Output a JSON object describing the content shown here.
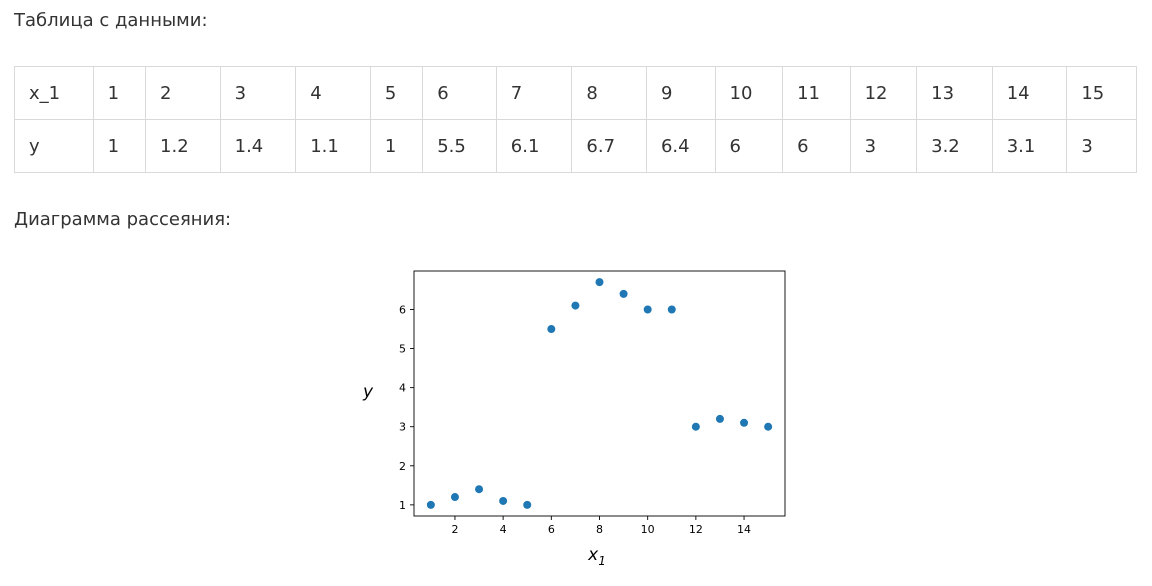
{
  "table_heading": "Таблица с данными:",
  "chart_heading": "Диаграмма рассеяния:",
  "table": {
    "rows": [
      [
        "x_1",
        "1",
        "2",
        "3",
        "4",
        "5",
        "6",
        "7",
        "8",
        "9",
        "10",
        "11",
        "12",
        "13",
        "14",
        "15"
      ],
      [
        "y",
        "1",
        "1.2",
        "1.4",
        "1.1",
        "1",
        "5.5",
        "6.1",
        "6.7",
        "6.4",
        "6",
        "6",
        "3",
        "3.2",
        "3.1",
        "3"
      ]
    ]
  },
  "chart_data": {
    "type": "scatter",
    "x": [
      1,
      2,
      3,
      4,
      5,
      6,
      7,
      8,
      9,
      10,
      11,
      12,
      13,
      14,
      15
    ],
    "y": [
      1,
      1.2,
      1.4,
      1.1,
      1,
      5.5,
      6.1,
      6.7,
      6.4,
      6,
      6,
      3,
      3.2,
      3.1,
      3
    ],
    "xlabel": "x",
    "xlabel_subscript": "1",
    "ylabel": "y",
    "xticks": [
      2,
      4,
      6,
      8,
      10,
      12,
      14
    ],
    "yticks": [
      1,
      2,
      3,
      4,
      5,
      6
    ],
    "xlim": [
      0.3,
      15.7
    ],
    "ylim": [
      0.715,
      6.985
    ],
    "grid": false,
    "point_color": "#1f77b4"
  }
}
